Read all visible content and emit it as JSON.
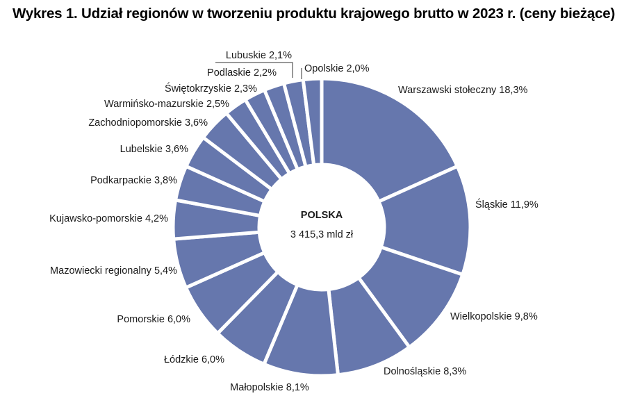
{
  "chart_data": {
    "type": "pie",
    "variant": "donut",
    "title": "Wykres 1. Udział regionów w tworzeniu produktu krajowego brutto w 2023 r. (ceny bieżące)",
    "center": {
      "label": "POLSKA",
      "value": "3 415,3 mld zł"
    },
    "unit": "%",
    "color": "#6677ad",
    "slices": [
      {
        "name": "Warszawski stołeczny",
        "value": 18.3,
        "label": "Warszawski stołeczny 18,3%"
      },
      {
        "name": "Śląskie",
        "value": 11.9,
        "label": "Śląskie 11,9%"
      },
      {
        "name": "Wielkopolskie",
        "value": 9.8,
        "label": "Wielkopolskie 9,8%"
      },
      {
        "name": "Dolnośląskie",
        "value": 8.3,
        "label": "Dolnośląskie 8,3%"
      },
      {
        "name": "Małopolskie",
        "value": 8.1,
        "label": "Małopolskie 8,1%"
      },
      {
        "name": "Łódzkie",
        "value": 6.0,
        "label": "Łódzkie 6,0%"
      },
      {
        "name": "Pomorskie",
        "value": 6.0,
        "label": "Pomorskie 6,0%"
      },
      {
        "name": "Mazowiecki regionalny",
        "value": 5.4,
        "label": "Mazowiecki regionalny 5,4%"
      },
      {
        "name": "Kujawsko-pomorskie",
        "value": 4.2,
        "label": "Kujawsko-pomorskie 4,2%"
      },
      {
        "name": "Podkarpackie",
        "value": 3.8,
        "label": "Podkarpackie 3,8%"
      },
      {
        "name": "Lubelskie",
        "value": 3.6,
        "label": "Lubelskie 3,6%"
      },
      {
        "name": "Zachodniopomorskie",
        "value": 3.6,
        "label": "Zachodniopomorskie 3,6%"
      },
      {
        "name": "Warmińsko-mazurskie",
        "value": 2.5,
        "label": "Warmińsko-mazurskie 2,5%"
      },
      {
        "name": "Świętokrzyskie",
        "value": 2.3,
        "label": "Świętokrzyskie 2,3%"
      },
      {
        "name": "Podlaskie",
        "value": 2.2,
        "label": "Podlaskie 2,2%"
      },
      {
        "name": "Lubuskie",
        "value": 2.1,
        "label": "Lubuskie 2,1%"
      },
      {
        "name": "Opolskie",
        "value": 2.0,
        "label": "Opolskie 2,0%"
      }
    ]
  }
}
